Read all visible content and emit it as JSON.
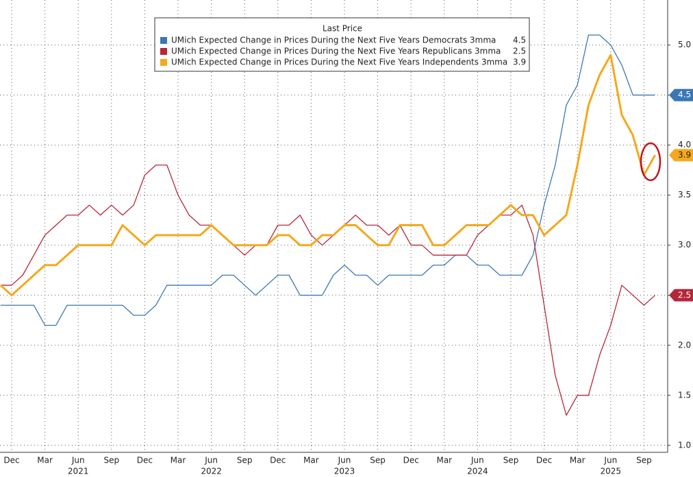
{
  "chart_data": {
    "type": "line",
    "legend_title": "Last Price",
    "categories": [
      null,
      "Dec",
      null,
      null,
      "Mar",
      null,
      null,
      "Jun",
      null,
      null,
      "Sep",
      null,
      null,
      "Dec",
      null,
      null,
      "Mar",
      null,
      null,
      "Jun",
      null,
      null,
      "Sep",
      null,
      null,
      "Dec",
      null,
      null,
      "Mar",
      null,
      null,
      "Jun",
      null,
      null,
      "Sep",
      null,
      null,
      "Dec",
      null,
      null,
      "Mar",
      null,
      null,
      "Jun",
      null,
      null,
      "Sep",
      null,
      null,
      "Dec",
      null,
      null,
      "Mar",
      null,
      null,
      "Jun",
      null,
      null,
      "Sep",
      null
    ],
    "years": [
      "2021",
      "2022",
      "2023",
      "2024",
      "2025"
    ],
    "series": [
      {
        "name": "UMich Expected Change in Prices During the Next Five Years Democrats 3mma",
        "color": "#3a78b5",
        "values": [
          2.4,
          2.4,
          2.4,
          2.4,
          2.2,
          2.2,
          2.4,
          2.4,
          2.4,
          2.4,
          2.4,
          2.4,
          2.3,
          2.3,
          2.4,
          2.6,
          2.6,
          2.6,
          2.6,
          2.6,
          2.7,
          2.7,
          2.6,
          2.5,
          2.6,
          2.7,
          2.7,
          2.5,
          2.5,
          2.5,
          2.7,
          2.8,
          2.7,
          2.7,
          2.6,
          2.7,
          2.7,
          2.7,
          2.7,
          2.8,
          2.8,
          2.9,
          2.9,
          2.8,
          2.8,
          2.7,
          2.7,
          2.7,
          2.9,
          3.4,
          3.8,
          4.4,
          4.6,
          5.1,
          5.1,
          5.0,
          4.8,
          4.5,
          4.5,
          4.5
        ]
      },
      {
        "name": "UMich Expected Change in Prices During the Next Five Years Republicans 3mma",
        "color": "#b5273a",
        "values": [
          2.6,
          2.6,
          2.7,
          2.9,
          3.1,
          3.2,
          3.3,
          3.3,
          3.4,
          3.3,
          3.4,
          3.3,
          3.4,
          3.7,
          3.8,
          3.8,
          3.5,
          3.3,
          3.2,
          3.2,
          3.1,
          3.0,
          2.9,
          3.0,
          3.0,
          3.2,
          3.2,
          3.3,
          3.1,
          3.0,
          3.1,
          3.2,
          3.3,
          3.2,
          3.2,
          3.1,
          3.2,
          3.0,
          3.0,
          2.9,
          2.9,
          2.9,
          2.9,
          3.1,
          3.2,
          3.3,
          3.3,
          3.4,
          3.1,
          2.4,
          1.7,
          1.3,
          1.5,
          1.5,
          1.9,
          2.2,
          2.6,
          2.5,
          2.4,
          2.5
        ]
      },
      {
        "name": "UMich Expected Change in Prices During the Next Five Years Independents 3mma",
        "color": "#f5a81c",
        "values": [
          2.6,
          2.5,
          2.6,
          2.7,
          2.8,
          2.8,
          2.9,
          3.0,
          3.0,
          3.0,
          3.0,
          3.2,
          3.1,
          3.0,
          3.1,
          3.1,
          3.1,
          3.1,
          3.1,
          3.2,
          3.1,
          3.0,
          3.0,
          3.0,
          3.0,
          3.1,
          3.1,
          3.0,
          3.0,
          3.1,
          3.1,
          3.2,
          3.2,
          3.1,
          3.0,
          3.0,
          3.2,
          3.2,
          3.2,
          3.0,
          3.0,
          3.1,
          3.2,
          3.2,
          3.2,
          3.3,
          3.4,
          3.3,
          3.3,
          3.1,
          3.2,
          3.3,
          3.8,
          4.4,
          4.7,
          4.9,
          4.3,
          4.1,
          3.7,
          3.9
        ]
      }
    ],
    "ylim": [
      0.93,
      5.45
    ],
    "yticks": [
      {
        "value": 1,
        "label": "1.0"
      },
      1.5,
      {
        "value": 2,
        "label": "2.0"
      },
      2.5,
      {
        "value": 3,
        "label": "3.0"
      },
      3.5,
      {
        "value": 4,
        "label": "4.0"
      },
      4.5,
      {
        "value": 5,
        "label": "5.0"
      }
    ],
    "grid": true
  }
}
